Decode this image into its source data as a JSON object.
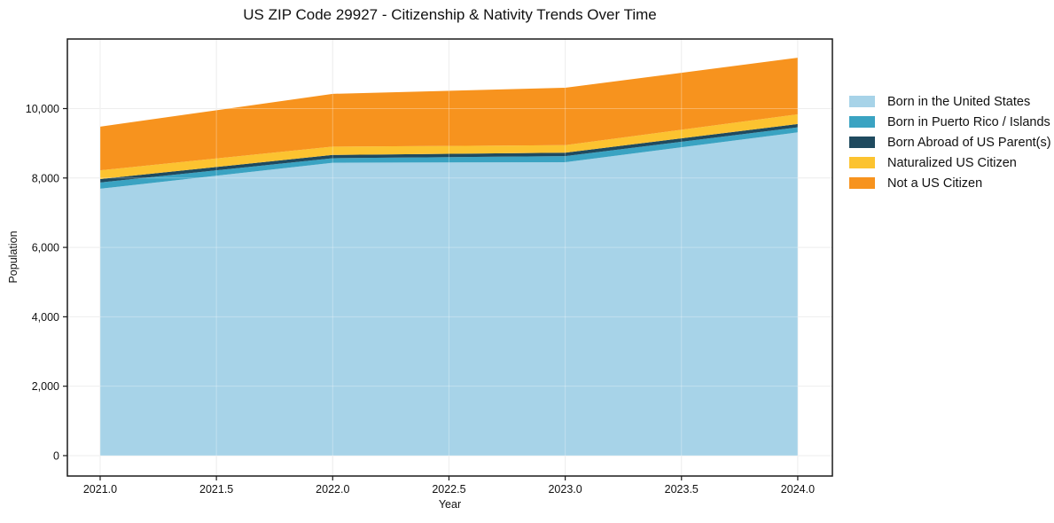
{
  "page": {
    "background": "#ffffff"
  },
  "chart_data": {
    "type": "area",
    "stacked": true,
    "title": "US ZIP Code 29927 - Citizenship & Nativity Trends Over Time",
    "xlabel": "Year",
    "ylabel": "Population",
    "x": [
      2021,
      2022,
      2023,
      2024
    ],
    "series": [
      {
        "name": "Born in the United States",
        "color": "#a7d3e8",
        "values": [
          7690,
          8440,
          8455,
          9315
        ]
      },
      {
        "name": "Born in Puerto Rico / Islands",
        "color": "#3aa3c2",
        "values": [
          180,
          130,
          175,
          145
        ]
      },
      {
        "name": "Born Abroad of US Parent(s)",
        "color": "#1f4a5f",
        "values": [
          100,
          95,
          100,
          95
        ]
      },
      {
        "name": "Naturalized US Citizen",
        "color": "#fcc330",
        "values": [
          250,
          240,
          215,
          280
        ]
      },
      {
        "name": "Not a US Citizen",
        "color": "#f7931e",
        "values": [
          1260,
          1520,
          1655,
          1630
        ]
      }
    ],
    "stack_totals": [
      9480,
      10425,
      10600,
      11465
    ],
    "xlim": [
      2020.859,
      2024.149
    ],
    "ylim": [
      -588,
      12005
    ],
    "xticks": [
      2021.0,
      2021.5,
      2022.0,
      2022.5,
      2023.0,
      2023.5,
      2024.0
    ],
    "xtick_labels": [
      "2021.0",
      "2021.5",
      "2022.0",
      "2022.5",
      "2023.0",
      "2023.5",
      "2024.0"
    ],
    "yticks": [
      0,
      2000,
      4000,
      6000,
      8000,
      10000
    ],
    "ytick_labels": [
      "0",
      "2,000",
      "4,000",
      "6,000",
      "8,000",
      "10,000"
    ],
    "grid": true,
    "grid_color": "#e7e7e7",
    "grid_overlay_color": "rgba(255,255,255,0.3)",
    "spine_color": "#1a1a1a",
    "legend_position": "right-outside"
  }
}
